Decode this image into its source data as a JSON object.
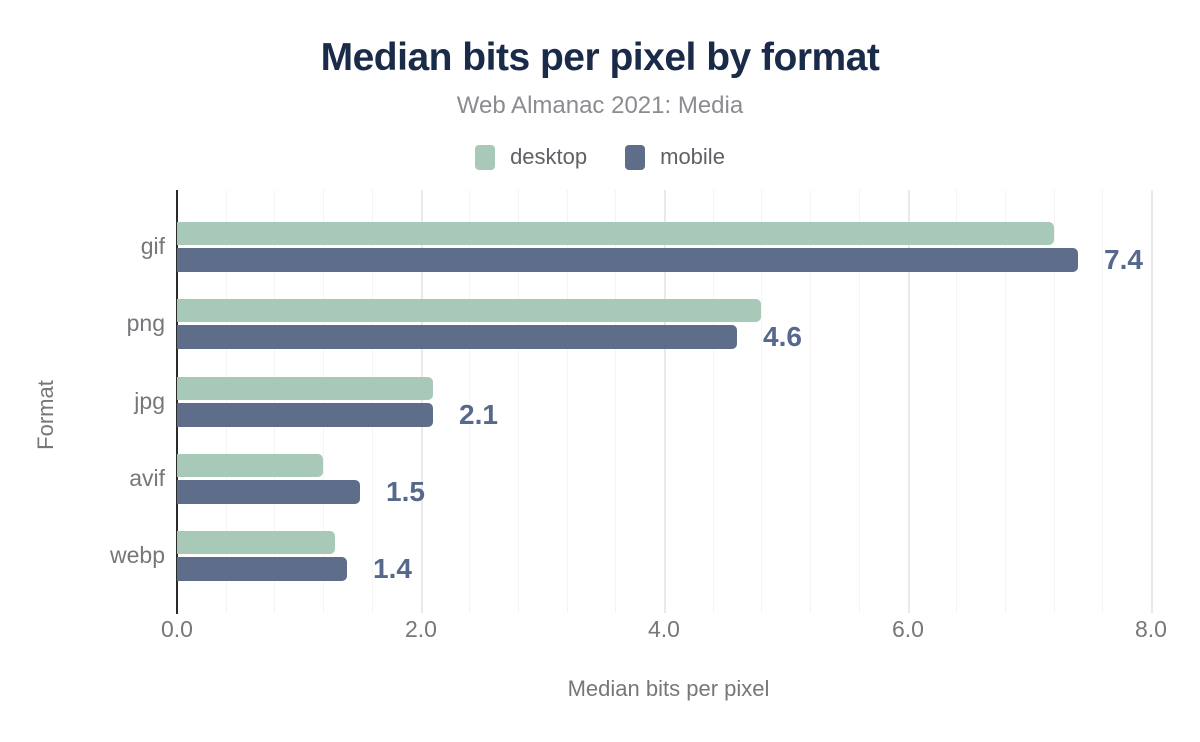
{
  "header": {
    "title": "Median bits per pixel by format",
    "subtitle": "Web Almanac 2021: Media"
  },
  "chart_data": {
    "type": "bar",
    "orientation": "horizontal",
    "title": "Median bits per pixel by format",
    "subtitle": "Web Almanac 2021: Media",
    "categories": [
      "gif",
      "png",
      "jpg",
      "avif",
      "webp"
    ],
    "series": [
      {
        "name": "desktop",
        "color": "#a8c9b7",
        "values": [
          7.2,
          4.8,
          2.1,
          1.2,
          1.3
        ]
      },
      {
        "name": "mobile",
        "color": "#5e6e8a",
        "values": [
          7.4,
          4.6,
          2.1,
          1.5,
          1.4
        ]
      }
    ],
    "value_labels": [
      "7.4",
      "4.6",
      "2.1",
      "1.5",
      "1.4"
    ],
    "value_label_series": "mobile",
    "xlabel": "Median bits per pixel",
    "ylabel": "Format",
    "xlim": [
      0,
      8
    ],
    "xticks": [
      0,
      2,
      4,
      6,
      8
    ],
    "xtick_labels": [
      "0.0",
      "2.0",
      "4.0",
      "6.0",
      "8.0"
    ],
    "grid": {
      "vertical": true,
      "minor_step": 0.4,
      "major_step": 2.0
    },
    "legend_position": "top",
    "colors": {
      "title": "#1a2b49",
      "subtitle_text": "#8b8c91",
      "axis_text": "#76777b",
      "value_label_text": "#56698c",
      "axis_line": "#2a2a2a",
      "grid_minor": "#f4f4f4",
      "grid_major": "#e9e9e9"
    }
  }
}
